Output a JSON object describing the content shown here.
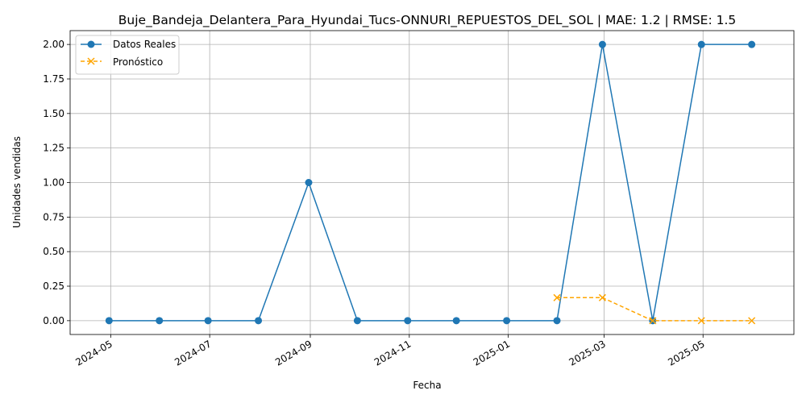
{
  "chart_data": {
    "type": "line",
    "title": "Buje_Bandeja_Delantera_Para_Hyundai_Tucs-ONNURI_REPUESTOS_DEL_SOL | MAE: 1.2 | RMSE: 1.5",
    "xlabel": "Fecha",
    "ylabel": "Unidades vendidas",
    "grid": true,
    "legend_position": "top-left",
    "ylim": [
      -0.1,
      2.1
    ],
    "xlim": [
      "2024-04-06",
      "2025-06-26"
    ],
    "x_ticks": [
      "2024-05-01",
      "2024-07-01",
      "2024-09-01",
      "2024-11-01",
      "2025-01-01",
      "2025-03-01",
      "2025-05-01"
    ],
    "x_tick_labels": [
      "2024-05",
      "2024-07",
      "2024-09",
      "2024-11",
      "2025-01",
      "2025-03",
      "2025-05"
    ],
    "y_ticks": [
      0.0,
      0.25,
      0.5,
      0.75,
      1.0,
      1.25,
      1.5,
      1.75,
      2.0
    ],
    "y_tick_labels": [
      "0.00",
      "0.25",
      "0.50",
      "0.75",
      "1.00",
      "1.25",
      "1.50",
      "1.75",
      "2.00"
    ],
    "series": [
      {
        "name": "Datos Reales",
        "color": "#1f77b4",
        "style": "solid",
        "marker": "circle",
        "x": [
          "2024-04-30",
          "2024-05-31",
          "2024-06-30",
          "2024-07-31",
          "2024-08-31",
          "2024-09-30",
          "2024-10-31",
          "2024-11-30",
          "2024-12-31",
          "2025-01-31",
          "2025-02-28",
          "2025-03-31",
          "2025-04-30",
          "2025-05-31"
        ],
        "values": [
          0,
          0,
          0,
          0,
          1,
          0,
          0,
          0,
          0,
          0,
          2,
          0,
          2,
          2
        ]
      },
      {
        "name": "Pronóstico",
        "color": "#ffa500",
        "style": "dashed",
        "marker": "x",
        "x": [
          "2025-01-31",
          "2025-02-28",
          "2025-03-31",
          "2025-04-30",
          "2025-05-31"
        ],
        "values": [
          0.1667,
          0.1667,
          0.0,
          0.0,
          0.0
        ]
      }
    ]
  }
}
